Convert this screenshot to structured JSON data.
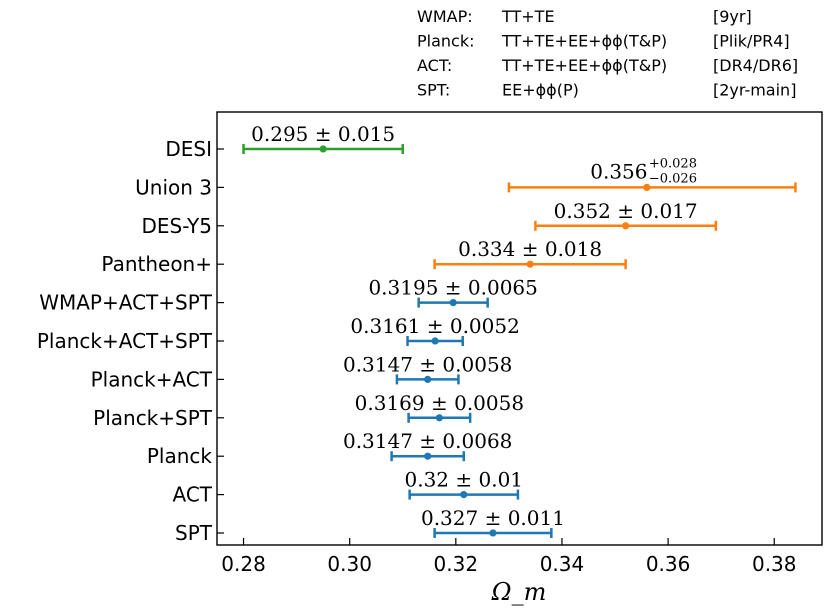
{
  "chart_data": {
    "type": "errorbar",
    "xlabel": "Ω_m",
    "xlim": [
      0.275,
      0.389
    ],
    "xticks": [
      0.28,
      0.3,
      0.32,
      0.34,
      0.36,
      0.38
    ],
    "xtick_labels": [
      "0.28",
      "0.30",
      "0.32",
      "0.34",
      "0.36",
      "0.38"
    ],
    "categories": [
      "DESI",
      "Union 3",
      "DES-Y5",
      "Pantheon+",
      "WMAP+ACT+SPT",
      "Planck+ACT+SPT",
      "Planck+ACT",
      "Planck+SPT",
      "Planck",
      "ACT",
      "SPT"
    ],
    "points": [
      {
        "label": "DESI",
        "value": 0.295,
        "err_low": 0.015,
        "err_high": 0.015,
        "color": "#2ca02c",
        "annotation": "0.295 ± 0.015"
      },
      {
        "label": "Union 3",
        "value": 0.356,
        "err_low": 0.026,
        "err_high": 0.028,
        "color": "#ff7f0e",
        "annotation": "0.356",
        "ann_plus": "+0.028",
        "ann_minus": "−0.026"
      },
      {
        "label": "DES-Y5",
        "value": 0.352,
        "err_low": 0.017,
        "err_high": 0.017,
        "color": "#ff7f0e",
        "annotation": "0.352 ± 0.017"
      },
      {
        "label": "Pantheon+",
        "value": 0.334,
        "err_low": 0.018,
        "err_high": 0.018,
        "color": "#ff7f0e",
        "annotation": "0.334 ± 0.018"
      },
      {
        "label": "WMAP+ACT+SPT",
        "value": 0.3195,
        "err_low": 0.0065,
        "err_high": 0.0065,
        "color": "#1f77b4",
        "annotation": "0.3195 ± 0.0065"
      },
      {
        "label": "Planck+ACT+SPT",
        "value": 0.3161,
        "err_low": 0.0052,
        "err_high": 0.0052,
        "color": "#1f77b4",
        "annotation": "0.3161 ± 0.0052"
      },
      {
        "label": "Planck+ACT",
        "value": 0.3147,
        "err_low": 0.0058,
        "err_high": 0.0058,
        "color": "#1f77b4",
        "annotation": "0.3147 ± 0.0058"
      },
      {
        "label": "Planck+SPT",
        "value": 0.3169,
        "err_low": 0.0058,
        "err_high": 0.0058,
        "color": "#1f77b4",
        "annotation": "0.3169 ± 0.0058"
      },
      {
        "label": "Planck",
        "value": 0.3147,
        "err_low": 0.0068,
        "err_high": 0.0068,
        "color": "#1f77b4",
        "annotation": "0.3147 ± 0.0068"
      },
      {
        "label": "ACT",
        "value": 0.3215,
        "err_low": 0.0102,
        "err_high": 0.0102,
        "color": "#1f77b4",
        "annotation": "0.32 ± 0.01"
      },
      {
        "label": "SPT",
        "value": 0.327,
        "err_low": 0.011,
        "err_high": 0.011,
        "color": "#1f77b4",
        "annotation": "0.327 ± 0.011"
      }
    ],
    "legend_table": [
      {
        "experiment": "WMAP:",
        "data": "TT+TE",
        "release": "[9yr]"
      },
      {
        "experiment": "Planck:",
        "data": "TT+TE+EE+ϕϕ(T&P)",
        "release": "[Plik/PR4]"
      },
      {
        "experiment": "ACT:",
        "data": "TT+TE+EE+ϕϕ(T&P)",
        "release": "[DR4/DR6]"
      },
      {
        "experiment": "SPT:",
        "data": "EE+ϕϕ(P)",
        "release": "[2yr-main]"
      }
    ],
    "legend_position": "top-right, outside plot",
    "grid": false
  }
}
